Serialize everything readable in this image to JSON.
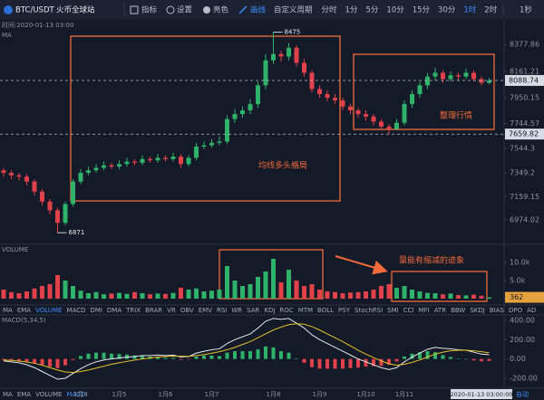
{
  "toolbar": {
    "symbol": "BTC/USDT",
    "exchange": "火币全球站",
    "tools": [
      "指标",
      "设置",
      "亮色",
      "画线"
    ],
    "custom_period": "自定义周期",
    "periods": [
      "分时",
      "1分",
      "5分",
      "10分",
      "15分",
      "30分",
      "1时",
      "2时"
    ],
    "right": "1秒"
  },
  "info": {
    "time": "时间:2020-01-13 03:00",
    "indicator": "MA"
  },
  "indicator_tabs": [
    "MA",
    "EMA",
    "VOLUME",
    "MACD",
    "DMI",
    "DMA",
    "TRIX",
    "BRAR",
    "VR",
    "OBV",
    "EMV",
    "RSI",
    "WR",
    "SAR",
    "KDJ",
    "ROC",
    "MTM",
    "BOLL",
    "PSY",
    "StochRSI",
    "SMI",
    "CCI",
    "MFI",
    "ATR",
    "BBW",
    "SKDJ",
    "BIAS",
    "DPO",
    "AD"
  ],
  "footer": {
    "crosshair_time": "2020-01-13 03:00:00",
    "mode": "自动"
  },
  "chart_data": [
    {
      "type": "candlestick",
      "up_color": "#2fb36b",
      "down_color": "#e0414a",
      "open": [
        7370,
        7350,
        7330,
        7320,
        7280,
        7200,
        7120,
        7050,
        6950,
        7100,
        7280,
        7350,
        7370,
        7390,
        7410,
        7400,
        7420,
        7440,
        7430,
        7460,
        7450,
        7470,
        7460,
        7480,
        7420,
        7470,
        7560,
        7570,
        7590,
        7600,
        7780,
        7820,
        7850,
        7900,
        8050,
        8250,
        8300,
        8280,
        8350,
        8230,
        8150,
        8020,
        7980,
        7950,
        7930,
        7880,
        7850,
        7820,
        7800,
        7760,
        7720,
        7700,
        7750,
        7900,
        7980,
        8050,
        8120,
        8150,
        8100,
        8130,
        8120,
        8150,
        8100,
        8070
      ],
      "high": [
        7390,
        7370,
        7350,
        7340,
        7300,
        7220,
        7140,
        7070,
        7120,
        7300,
        7380,
        7400,
        7420,
        7440,
        7430,
        7450,
        7470,
        7460,
        7490,
        7480,
        7500,
        7490,
        7510,
        7500,
        7490,
        7590,
        7600,
        7620,
        7640,
        7810,
        7860,
        7880,
        7940,
        8080,
        8300,
        8475,
        8330,
        8390,
        8370,
        8260,
        8170,
        8050,
        8010,
        7980,
        7950,
        7900,
        7870,
        7850,
        7820,
        7780,
        7740,
        7780,
        7930,
        8010,
        8080,
        8150,
        8190,
        8170,
        8160,
        8150,
        8180,
        8170,
        8120,
        8110
      ],
      "low": [
        7320,
        7300,
        7290,
        7250,
        7170,
        7090,
        7020,
        6871,
        6930,
        7080,
        7260,
        7330,
        7350,
        7370,
        7380,
        7380,
        7400,
        7410,
        7410,
        7430,
        7430,
        7440,
        7440,
        7390,
        7400,
        7450,
        7540,
        7550,
        7570,
        7580,
        7750,
        7790,
        7820,
        7870,
        8020,
        8220,
        8240,
        8250,
        8200,
        8120,
        7990,
        7950,
        7920,
        7900,
        7850,
        7820,
        7790,
        7770,
        7730,
        7690,
        7660,
        7690,
        7730,
        7870,
        7950,
        8020,
        8090,
        8070,
        8080,
        8090,
        8100,
        8080,
        8050,
        8060
      ],
      "close": [
        7350,
        7330,
        7320,
        7280,
        7200,
        7120,
        7050,
        6950,
        7100,
        7280,
        7350,
        7370,
        7390,
        7410,
        7400,
        7420,
        7440,
        7430,
        7460,
        7450,
        7470,
        7460,
        7480,
        7420,
        7470,
        7560,
        7570,
        7590,
        7600,
        7780,
        7820,
        7850,
        7900,
        8050,
        8250,
        8300,
        8280,
        8350,
        8230,
        8150,
        8020,
        7980,
        7950,
        7930,
        7880,
        7850,
        7820,
        7800,
        7760,
        7720,
        7700,
        7750,
        7900,
        7980,
        8050,
        8120,
        8150,
        8100,
        8130,
        8120,
        8150,
        8100,
        8070,
        8088.74
      ],
      "ylim": [
        6778,
        8573
      ],
      "yticks": [
        8377.86,
        8161.21,
        7950.15,
        7744.57,
        7544.3,
        7349.2,
        7159.15,
        6974.02
      ],
      "price_lines": [
        {
          "value": 8088.74,
          "color": "#d9dce3"
        },
        {
          "value": 7659.82,
          "color": "#d9dce3"
        }
      ],
      "annotations": [
        "均线多头格局",
        "整理行情"
      ]
    },
    {
      "type": "bar",
      "title": "VOLUME",
      "values": [
        2500,
        1800,
        1500,
        2000,
        2800,
        3500,
        4000,
        6500,
        5000,
        3500,
        2200,
        1500,
        1800,
        1200,
        1400,
        1600,
        1300,
        1800,
        1500,
        1200,
        1400,
        1300,
        1600,
        3000,
        2500,
        2800,
        2000,
        2200,
        2500,
        9000,
        5000,
        3500,
        4000,
        6000,
        7500,
        11000,
        4500,
        8000,
        5000,
        3500,
        4000,
        2500,
        2000,
        1800,
        1500,
        1700,
        1800,
        2000,
        2500,
        3500,
        4000,
        3000,
        3500,
        2500,
        2000,
        1600,
        1500,
        1200,
        1400,
        1000,
        900,
        1100,
        800,
        362
      ],
      "ylim": [
        0,
        14500
      ],
      "yticks": [
        {
          "value": 10000,
          "label": "10.0k"
        },
        {
          "value": 5000,
          "label": "5.0k"
        }
      ],
      "annotation": "量能有缩减的迹象"
    },
    {
      "type": "macd",
      "title": "MACD(5,34,5)",
      "categories": [
        null,
        null,
        null,
        null,
        null,
        null,
        null,
        null,
        null,
        null,
        "1月4",
        null,
        null,
        null,
        null,
        "1月5",
        null,
        null,
        null,
        null,
        null,
        "1月6",
        null,
        null,
        null,
        null,
        null,
        "1月7",
        null,
        null,
        null,
        null,
        null,
        null,
        null,
        "1月8",
        null,
        null,
        null,
        null,
        null,
        "1月9",
        null,
        null,
        null,
        null,
        null,
        "1月10",
        null,
        null,
        null,
        null,
        "1月11",
        null,
        null,
        null,
        null,
        null,
        null,
        null,
        null,
        null,
        null,
        null
      ],
      "histogram": [
        -10,
        -15,
        -18,
        -28,
        -45,
        -65,
        -80,
        -95,
        -65,
        -10,
        30,
        55,
        65,
        65,
        55,
        50,
        45,
        37,
        35,
        25,
        20,
        10,
        10,
        -8,
        -2,
        25,
        35,
        35,
        30,
        65,
        80,
        80,
        80,
        100,
        130,
        120,
        80,
        65,
        5,
        -40,
        -85,
        -100,
        -100,
        -100,
        -100,
        -95,
        -90,
        -80,
        -75,
        -70,
        -60,
        -25,
        25,
        55,
        70,
        80,
        70,
        40,
        20,
        5,
        0,
        -15,
        -25,
        -20
      ],
      "dif": [
        -20,
        -30,
        -40,
        -60,
        -90,
        -130,
        -170,
        -210,
        -200,
        -150,
        -100,
        -60,
        -30,
        -10,
        0,
        10,
        20,
        25,
        35,
        35,
        40,
        35,
        40,
        20,
        25,
        60,
        80,
        95,
        105,
        160,
        200,
        230,
        260,
        320,
        390,
        420,
        410,
        420,
        370,
        320,
        250,
        200,
        160,
        120,
        80,
        40,
        0,
        -30,
        -60,
        -90,
        -110,
        -90,
        -30,
        20,
        60,
        100,
        120,
        110,
        105,
        95,
        90,
        70,
        50,
        45
      ],
      "dea": [
        -10,
        -15,
        -22,
        -32,
        -45,
        -65,
        -90,
        -115,
        -135,
        -140,
        -130,
        -115,
        -95,
        -75,
        -55,
        -40,
        -25,
        -12,
        0,
        10,
        20,
        25,
        30,
        28,
        27,
        35,
        45,
        60,
        75,
        95,
        120,
        150,
        180,
        220,
        260,
        300,
        330,
        355,
        365,
        360,
        335,
        300,
        260,
        220,
        180,
        135,
        90,
        50,
        15,
        -20,
        -50,
        -65,
        -55,
        -35,
        -10,
        20,
        50,
        70,
        85,
        90,
        90,
        85,
        75,
        65
      ],
      "dif_color": "#e8e8e8",
      "dea_color": "#e6c229",
      "up_color": "#2fb36b",
      "down_color": "#e0414a",
      "ylim": [
        -294,
        456
      ],
      "yticks": [
        {
          "value": 400,
          "label": "400.00"
        },
        {
          "value": 200,
          "label": "200.00"
        },
        {
          "value": 0,
          "label": "0.00"
        },
        {
          "value": -200,
          "label": "-200.00"
        }
      ]
    }
  ]
}
